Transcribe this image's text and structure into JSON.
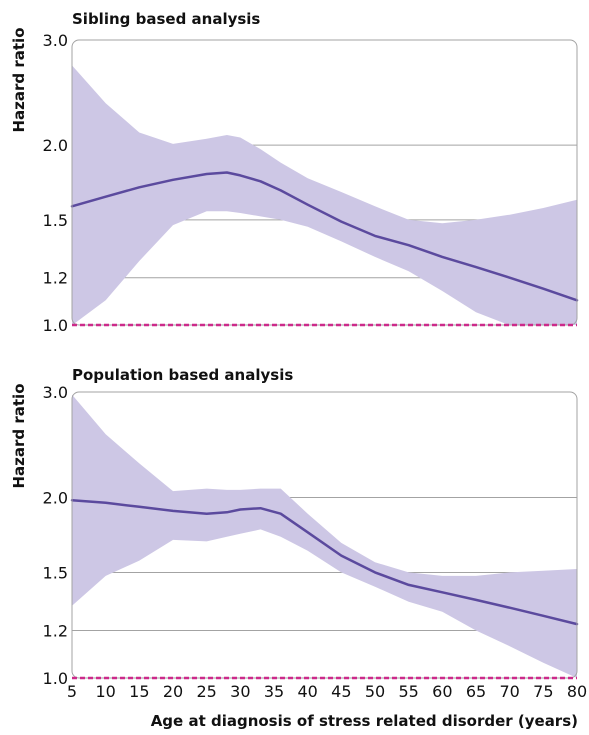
{
  "chart_data": [
    {
      "type": "line",
      "title": "Sibling based analysis",
      "ylabel": "Hazard ratio",
      "xlabel": "",
      "yscale": "log",
      "ylim": [
        1.0,
        3.0
      ],
      "xlim": [
        5,
        80
      ],
      "yticks": [
        1.0,
        1.2,
        1.5,
        2.0,
        3.0
      ],
      "ytick_labels": [
        "1.0",
        "1.2",
        "1.5",
        "2.0",
        "3.0"
      ],
      "reference_line": 1.0,
      "colors": {
        "line": "#5b4a9e",
        "band": "#cdc7e5",
        "reference": "#cc2a8a",
        "grid": "#a3a3a3"
      },
      "x": [
        5,
        10,
        15,
        20,
        25,
        28,
        30,
        33,
        36,
        40,
        45,
        50,
        55,
        60,
        65,
        70,
        75,
        80
      ],
      "y": [
        1.58,
        1.64,
        1.7,
        1.75,
        1.79,
        1.8,
        1.78,
        1.74,
        1.68,
        1.59,
        1.49,
        1.41,
        1.36,
        1.3,
        1.25,
        1.2,
        1.15,
        1.1
      ],
      "ci_lower": [
        0.8,
        1.1,
        1.28,
        1.47,
        1.55,
        1.55,
        1.54,
        1.52,
        1.5,
        1.46,
        1.38,
        1.3,
        1.23,
        1.14,
        1.05,
        0.96,
        0.89,
        0.82
      ],
      "ci_upper": [
        2.72,
        2.35,
        2.1,
        2.01,
        2.05,
        2.08,
        2.06,
        1.97,
        1.87,
        1.76,
        1.67,
        1.58,
        1.5,
        1.48,
        1.5,
        1.53,
        1.57,
        1.62
      ]
    },
    {
      "type": "line",
      "title": "Population based analysis",
      "ylabel": "Hazard ratio",
      "xlabel": "Age at diagnosis of stress related disorder (years)",
      "yscale": "log",
      "ylim": [
        1.0,
        3.0
      ],
      "xlim": [
        5,
        80
      ],
      "yticks": [
        1.0,
        1.2,
        1.5,
        2.0,
        3.0
      ],
      "ytick_labels": [
        "1.0",
        "1.2",
        "1.5",
        "2.0",
        "3.0"
      ],
      "xticks": [
        5,
        10,
        15,
        20,
        25,
        30,
        35,
        40,
        45,
        50,
        55,
        60,
        65,
        70,
        75,
        80
      ],
      "reference_line": 1.0,
      "colors": {
        "line": "#5b4a9e",
        "band": "#cdc7e5",
        "reference": "#cc2a8a",
        "grid": "#a3a3a3"
      },
      "x": [
        5,
        10,
        15,
        20,
        25,
        28,
        30,
        33,
        36,
        40,
        45,
        50,
        55,
        60,
        65,
        70,
        75,
        80
      ],
      "y": [
        1.98,
        1.96,
        1.93,
        1.9,
        1.88,
        1.89,
        1.91,
        1.92,
        1.88,
        1.75,
        1.6,
        1.5,
        1.43,
        1.39,
        1.35,
        1.31,
        1.27,
        1.23
      ],
      "ci_lower": [
        1.32,
        1.48,
        1.57,
        1.7,
        1.69,
        1.72,
        1.74,
        1.77,
        1.72,
        1.63,
        1.5,
        1.42,
        1.34,
        1.29,
        1.2,
        1.13,
        1.06,
        1.0
      ],
      "ci_upper": [
        2.97,
        2.55,
        2.28,
        2.05,
        2.07,
        2.06,
        2.06,
        2.07,
        2.07,
        1.88,
        1.68,
        1.56,
        1.5,
        1.48,
        1.48,
        1.5,
        1.51,
        1.52
      ]
    }
  ]
}
